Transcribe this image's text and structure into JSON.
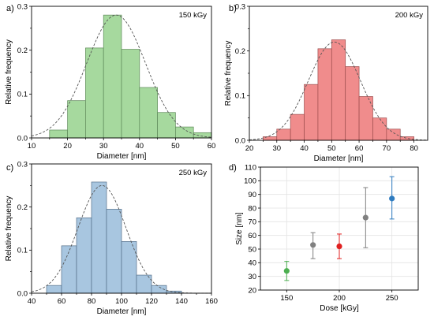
{
  "chart_data": [
    {
      "type": "bar",
      "panel": "a)",
      "annotation": "150 kGy",
      "xlabel": "Diameter [nm]",
      "ylabel": "Relative frequency",
      "xlim": [
        10,
        60
      ],
      "ylim": [
        0,
        0.3
      ],
      "xticks": [
        10,
        20,
        30,
        40,
        50,
        60
      ],
      "yticks": [
        0.0,
        0.1,
        0.2,
        0.3
      ],
      "bin_edges": [
        15,
        20,
        25,
        30,
        35,
        40,
        45,
        50,
        55,
        60
      ],
      "values": [
        0.018,
        0.085,
        0.205,
        0.28,
        0.202,
        0.115,
        0.058,
        0.025,
        0.012
      ],
      "fit": {
        "type": "gaussian",
        "mean": 33.5,
        "sigma": 8.2,
        "amplitude": 0.28
      },
      "color": "#a6d99e",
      "edge_color": "#5f8a5a"
    },
    {
      "type": "bar",
      "panel": "b)",
      "annotation": "200 kGy",
      "xlabel": "Diameter [nm]",
      "ylabel": "Relative frequency",
      "xlim": [
        20,
        85
      ],
      "ylim": [
        0,
        0.3
      ],
      "xticks": [
        20,
        30,
        40,
        50,
        60,
        70,
        80
      ],
      "yticks": [
        0.0,
        0.1,
        0.2,
        0.3
      ],
      "bin_edges": [
        25,
        30,
        35,
        40,
        45,
        50,
        55,
        60,
        65,
        70,
        75,
        80
      ],
      "values": [
        0.008,
        0.025,
        0.058,
        0.125,
        0.205,
        0.225,
        0.165,
        0.098,
        0.05,
        0.025,
        0.008
      ],
      "fit": {
        "type": "gaussian",
        "mean": 51,
        "sigma": 9.5,
        "amplitude": 0.22
      },
      "color": "#f08c8c",
      "edge_color": "#9c4d4d"
    },
    {
      "type": "bar",
      "panel": "c)",
      "annotation": "250 kGy",
      "xlabel": "Diameter [nm]",
      "ylabel": "Relative frequency",
      "xlim": [
        40,
        160
      ],
      "ylim": [
        0,
        0.3
      ],
      "xticks": [
        40,
        60,
        80,
        100,
        120,
        140,
        160
      ],
      "yticks": [
        0.0,
        0.1,
        0.2,
        0.3
      ],
      "bin_edges": [
        50,
        60,
        70,
        80,
        90,
        100,
        110,
        120,
        130,
        140
      ],
      "values": [
        0.018,
        0.11,
        0.175,
        0.258,
        0.195,
        0.12,
        0.042,
        0.018,
        0.005
      ],
      "fit": {
        "type": "gaussian",
        "mean": 87,
        "sigma": 16,
        "amplitude": 0.25
      },
      "color": "#a8c6e0",
      "edge_color": "#56708a"
    },
    {
      "type": "scatter",
      "panel": "d)",
      "xlabel": "Dose [kGy]",
      "ylabel": "Size [nm]",
      "xlim": [
        125,
        275
      ],
      "ylim": [
        20,
        110
      ],
      "xticks": [
        150,
        200,
        250
      ],
      "yticks": [
        20,
        30,
        40,
        50,
        60,
        70,
        80,
        90,
        100,
        110
      ],
      "grid": true,
      "points": [
        {
          "x": 150,
          "y": 34,
          "err_low": 7,
          "err_high": 7,
          "color": "#4caf50"
        },
        {
          "x": 175,
          "y": 53,
          "err_low": 10,
          "err_high": 9,
          "color": "#808080"
        },
        {
          "x": 200,
          "y": 52,
          "err_low": 9,
          "err_high": 9,
          "color": "#e02020"
        },
        {
          "x": 225,
          "y": 73,
          "err_low": 22,
          "err_high": 22,
          "color": "#808080"
        },
        {
          "x": 250,
          "y": 87,
          "err_low": 15,
          "err_high": 16,
          "color": "#2e7bbf"
        }
      ]
    }
  ]
}
